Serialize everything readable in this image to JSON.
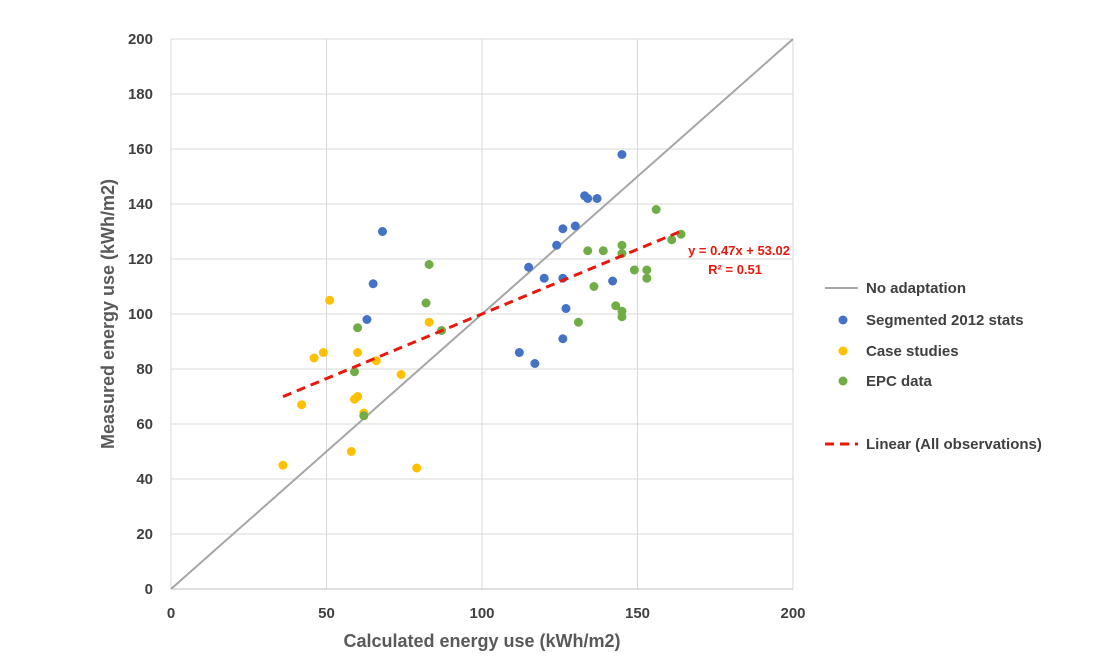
{
  "chart_data": {
    "type": "scatter",
    "xlabel": "Calculated energy use (kWh/m2)",
    "ylabel": "Measured energy use (kWh/m2)",
    "xlim": [
      0,
      200
    ],
    "ylim": [
      0,
      200
    ],
    "xticks": [
      0,
      50,
      100,
      150,
      200
    ],
    "yticks": [
      0,
      20,
      40,
      60,
      80,
      100,
      120,
      140,
      160,
      180,
      200
    ],
    "grid": "vertical and horizontal major gridlines",
    "legend_position": "right",
    "reference_line": {
      "name": "No adaptation",
      "color": "#a6a6a6",
      "points": [
        [
          0,
          0
        ],
        [
          200,
          200
        ]
      ]
    },
    "series": [
      {
        "name": "Segmented 2012 stats",
        "color": "#4472c4",
        "points": [
          [
            68,
            130
          ],
          [
            65,
            111
          ],
          [
            63,
            98
          ],
          [
            112,
            86
          ],
          [
            117,
            82
          ],
          [
            115,
            117
          ],
          [
            120,
            113
          ],
          [
            124,
            125
          ],
          [
            126,
            131
          ],
          [
            126,
            113
          ],
          [
            127,
            102
          ],
          [
            126,
            91
          ],
          [
            130,
            132
          ],
          [
            133,
            143
          ],
          [
            134,
            142
          ],
          [
            137,
            142
          ],
          [
            142,
            112
          ],
          [
            145,
            158
          ]
        ]
      },
      {
        "name": "Case studies",
        "color": "#ffc000",
        "points": [
          [
            36,
            45
          ],
          [
            42,
            67
          ],
          [
            46,
            84
          ],
          [
            49,
            86
          ],
          [
            51,
            105
          ],
          [
            58,
            50
          ],
          [
            59,
            69
          ],
          [
            60,
            70
          ],
          [
            60,
            86
          ],
          [
            62,
            64
          ],
          [
            66,
            83
          ],
          [
            74,
            78
          ],
          [
            79,
            44
          ],
          [
            83,
            97
          ]
        ]
      },
      {
        "name": "EPC data",
        "color": "#70ad47",
        "points": [
          [
            59,
            79
          ],
          [
            60,
            95
          ],
          [
            62,
            63
          ],
          [
            82,
            104
          ],
          [
            83,
            118
          ],
          [
            87,
            94
          ],
          [
            131,
            97
          ],
          [
            134,
            123
          ],
          [
            136,
            110
          ],
          [
            139,
            123
          ],
          [
            143,
            103
          ],
          [
            145,
            99
          ],
          [
            145,
            101
          ],
          [
            145,
            122
          ],
          [
            145,
            125
          ],
          [
            149,
            116
          ],
          [
            153,
            116
          ],
          [
            153,
            113
          ],
          [
            156,
            138
          ],
          [
            161,
            127
          ],
          [
            164,
            129
          ]
        ]
      }
    ],
    "trendline": {
      "name": "Linear (All observations)",
      "color": "#e8180c",
      "slope": 0.47,
      "intercept": 53.02,
      "x_range": [
        36,
        165
      ],
      "equation_label": "y = 0.47x + 53.02",
      "r2_label": "R² = 0.51"
    }
  }
}
